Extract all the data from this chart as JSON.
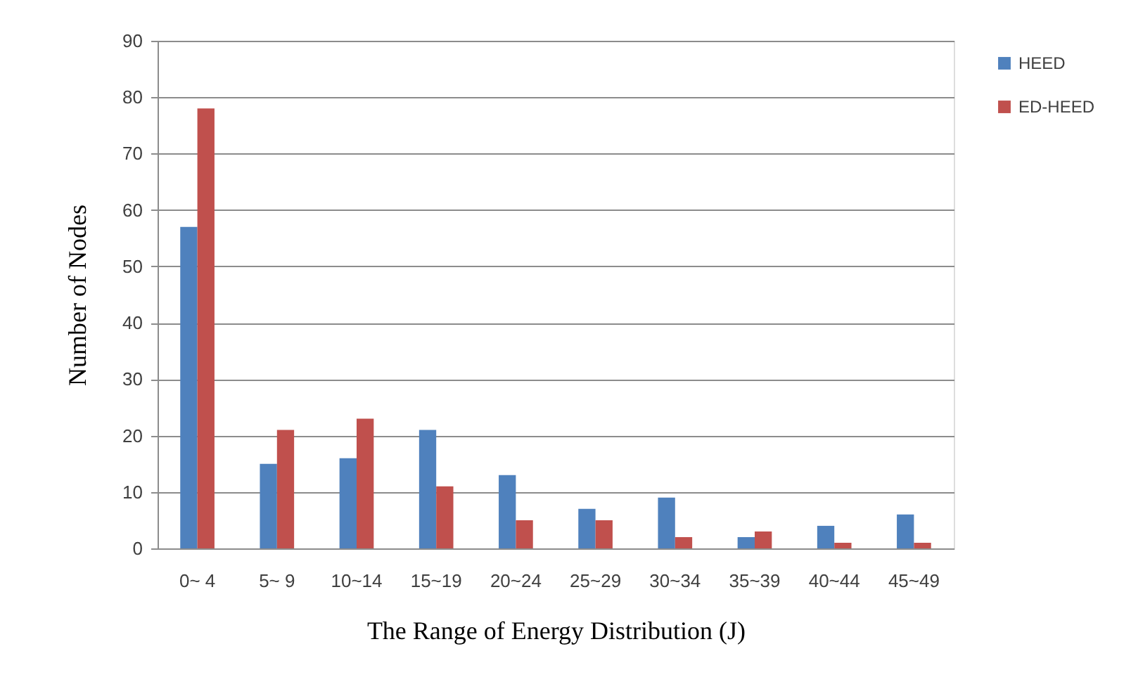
{
  "chart_data": {
    "type": "bar",
    "xlabel": "The Range of Energy Distribution (J)",
    "ylabel": "Number of Nodes",
    "categories": [
      "0~ 4",
      "5~ 9",
      "10~14",
      "15~19",
      "20~24",
      "25~29",
      "30~34",
      "35~39",
      "40~44",
      "45~49"
    ],
    "series": [
      {
        "name": "HEED",
        "color": "#4f81bd",
        "values": [
          57,
          15,
          16,
          21,
          13,
          7,
          9,
          2,
          4,
          6
        ]
      },
      {
        "name": "ED-HEED",
        "color": "#c0504d",
        "values": [
          78,
          21,
          23,
          11,
          5,
          5,
          2,
          3,
          1,
          1
        ]
      }
    ],
    "ylim": [
      0,
      90
    ],
    "yticks": [
      0,
      10,
      20,
      30,
      40,
      50,
      60,
      70,
      80,
      90
    ],
    "grid": "y",
    "legend": "top right"
  }
}
